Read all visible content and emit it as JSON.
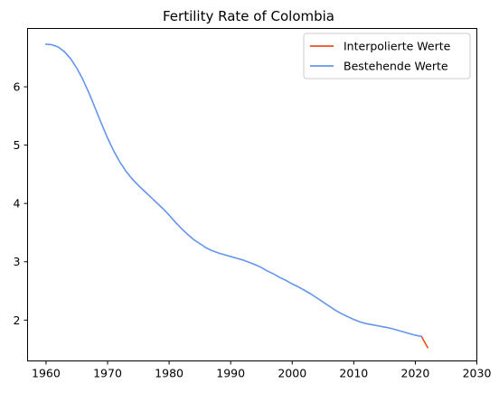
{
  "chart_data": {
    "type": "line",
    "title": "Fertility Rate of Colombia",
    "xlabel": "",
    "ylabel": "",
    "xlim": [
      1957,
      2030
    ],
    "ylim": [
      1.3,
      7.0
    ],
    "xticks": [
      1960,
      1970,
      1980,
      1990,
      2000,
      2010,
      2020,
      2030
    ],
    "yticks": [
      2,
      3,
      4,
      5,
      6
    ],
    "grid": false,
    "legend_position": "top-right",
    "series": [
      {
        "name": "Interpolierte Werte",
        "color": "#e8501e",
        "x": [
          2021,
          2022
        ],
        "values": [
          1.72,
          1.53
        ]
      },
      {
        "name": "Bestehende Werte",
        "color": "#6495ed",
        "x": [
          1960,
          1961,
          1962,
          1963,
          1964,
          1965,
          1966,
          1967,
          1968,
          1969,
          1970,
          1971,
          1972,
          1973,
          1974,
          1975,
          1976,
          1977,
          1978,
          1979,
          1980,
          1981,
          1982,
          1983,
          1984,
          1985,
          1986,
          1987,
          1988,
          1989,
          1990,
          1991,
          1992,
          1993,
          1994,
          1995,
          1996,
          1997,
          1998,
          1999,
          2000,
          2001,
          2002,
          2003,
          2004,
          2005,
          2006,
          2007,
          2008,
          2009,
          2010,
          2011,
          2012,
          2013,
          2014,
          2015,
          2016,
          2017,
          2018,
          2019,
          2020,
          2021
        ],
        "values": [
          6.73,
          6.72,
          6.68,
          6.6,
          6.48,
          6.32,
          6.12,
          5.89,
          5.63,
          5.37,
          5.12,
          4.9,
          4.71,
          4.55,
          4.42,
          4.31,
          4.21,
          4.11,
          4.01,
          3.91,
          3.8,
          3.68,
          3.57,
          3.47,
          3.38,
          3.31,
          3.24,
          3.19,
          3.15,
          3.12,
          3.09,
          3.06,
          3.03,
          2.99,
          2.95,
          2.9,
          2.84,
          2.79,
          2.73,
          2.68,
          2.62,
          2.57,
          2.51,
          2.45,
          2.38,
          2.31,
          2.24,
          2.17,
          2.11,
          2.06,
          2.01,
          1.97,
          1.94,
          1.92,
          1.9,
          1.88,
          1.86,
          1.83,
          1.8,
          1.77,
          1.74,
          1.72
        ]
      }
    ]
  }
}
